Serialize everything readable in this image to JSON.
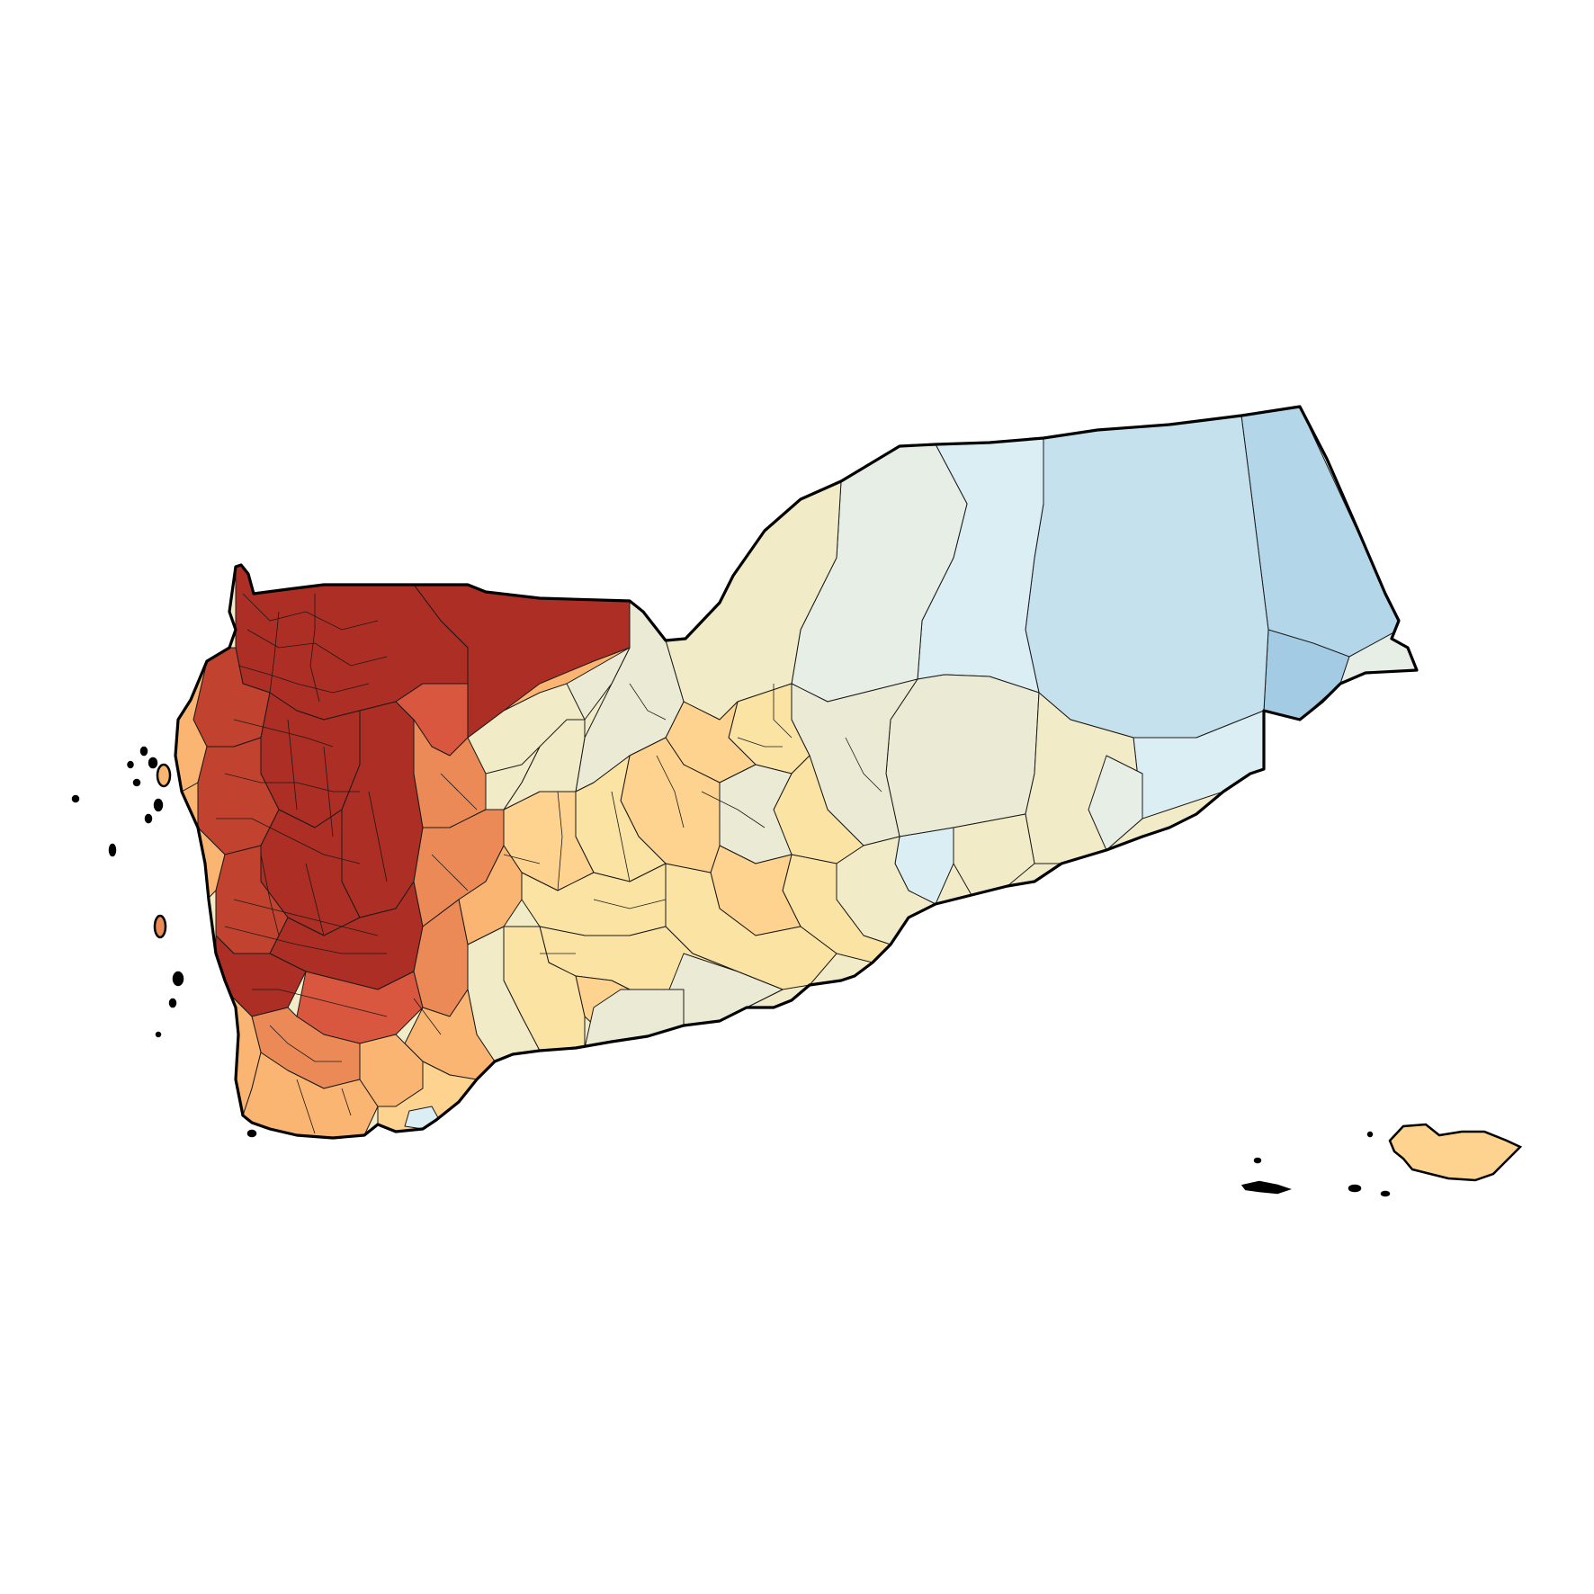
{
  "map": {
    "type": "choropleth",
    "palette": {
      "dark_red": "#ad2e24",
      "red": "#c1432f",
      "red_orange": "#d9573e",
      "orange": "#ec8a57",
      "light_orange": "#fbb572",
      "peach": "#fdd38f",
      "pale_yellow": "#fbe3a4",
      "cream": "#f2ebc8",
      "beige": "#ebebd5",
      "pale_green_gray": "#e6eee6",
      "pale_blue": "#daeef3",
      "light_blue": "#c4e1ed",
      "blue": "#b3d6e8",
      "mid_blue": "#a3cbe3",
      "outline": "#000000",
      "background": "#ffffff"
    }
  }
}
